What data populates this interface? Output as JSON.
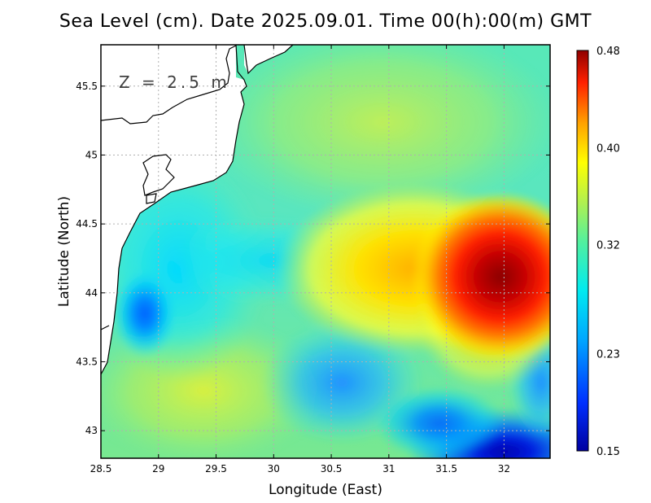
{
  "chart_data": {
    "type": "heatmap",
    "title": "Sea Level (cm). Date 2025.09.01. Time 00(h):00(m) GMT",
    "annotation": "Z = 2.5 m",
    "xlabel": "Longitude (East)",
    "ylabel": "Latitude (North)",
    "xlim": [
      28.5,
      32.4
    ],
    "ylim": [
      42.8,
      45.8
    ],
    "xticks": [
      28.5,
      29,
      29.5,
      30,
      30.5,
      31,
      31.5,
      32
    ],
    "xtick_labels": [
      "28.5",
      "29",
      "29.5",
      "30",
      "30.5",
      "31",
      "31.5",
      "32"
    ],
    "yticks": [
      43,
      43.5,
      44,
      44.5,
      45,
      45.5
    ],
    "ytick_labels": [
      "43",
      "43.5",
      "44",
      "44.5",
      "45",
      "45.5"
    ],
    "grid": true,
    "colorbar": {
      "min": 0.15,
      "max": 0.48,
      "ticks": [
        0.48,
        0.4,
        0.32,
        0.23,
        0.15
      ],
      "tick_labels": [
        "0.48",
        "0.40",
        "0.32",
        "0.23",
        "0.15"
      ],
      "placement": "right"
    },
    "features": [
      {
        "name": "maximum",
        "lon": 32.05,
        "lat": 44.1,
        "value": 0.48
      },
      {
        "name": "secondary high",
        "lon": 31.2,
        "lat": 44.55,
        "value": 0.4
      },
      {
        "name": "western low",
        "lon": 28.85,
        "lat": 43.85,
        "value": 0.2
      },
      {
        "name": "southeast low",
        "lon": 31.9,
        "lat": 42.9,
        "value": 0.16
      },
      {
        "name": "south-central low",
        "lon": 30.6,
        "lat": 43.35,
        "value": 0.22
      }
    ]
  },
  "colors": {
    "background": "#ffffff",
    "frame": "#000000",
    "grid": "#b0b0b0",
    "land": "#ffffff",
    "coast": "#000000"
  }
}
